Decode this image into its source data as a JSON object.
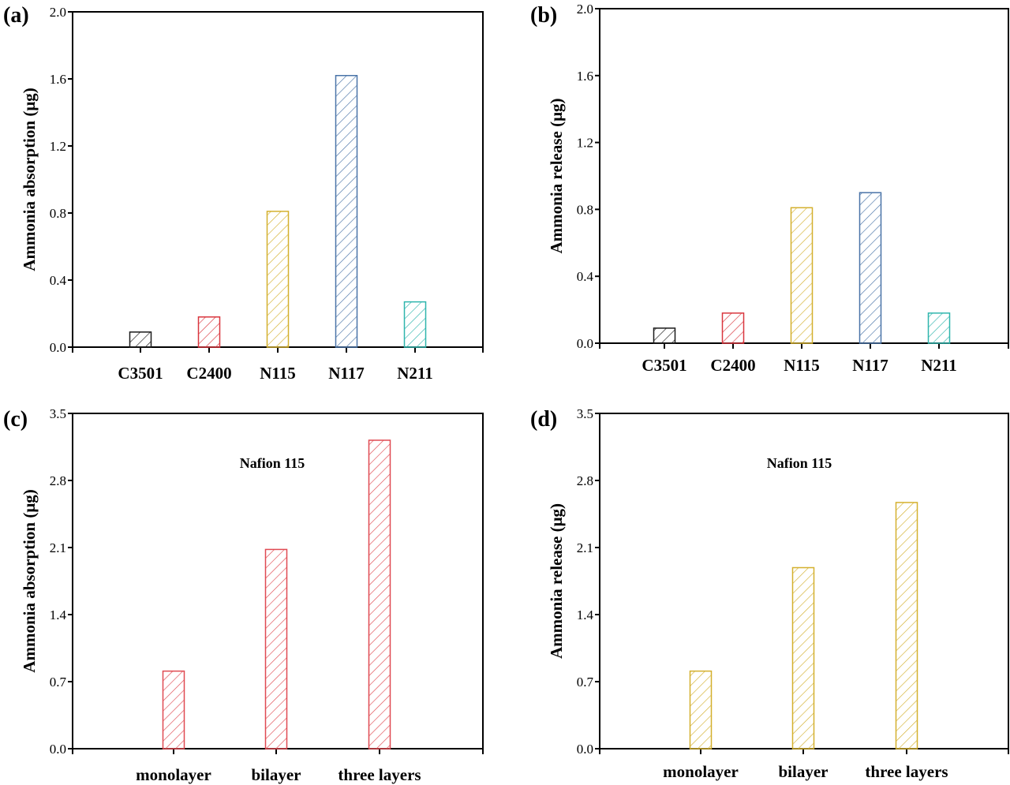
{
  "chart_data": [
    {
      "type": "bar",
      "panel_label": "(a)",
      "annotation": "",
      "categories": [
        "C3501",
        "C2400",
        "N115",
        "N117",
        "N211"
      ],
      "values": [
        0.09,
        0.18,
        0.81,
        1.62,
        0.27
      ],
      "colors": [
        "#1a1a1a",
        "#d9363e",
        "#d4b02e",
        "#4a74a8",
        "#2fb5ad"
      ],
      "ylabel": "Ammonia absorption (μg)",
      "xlabel": "",
      "ylim": [
        0,
        2.0
      ],
      "yticks": [
        "0.0",
        "0.4",
        "0.8",
        "1.2",
        "1.6",
        "2.0"
      ],
      "fill": "hatched",
      "grid": false
    },
    {
      "type": "bar",
      "panel_label": "(b)",
      "annotation": "",
      "categories": [
        "C3501",
        "C2400",
        "N115",
        "N117",
        "N211"
      ],
      "values": [
        0.09,
        0.18,
        0.81,
        0.9,
        0.18
      ],
      "colors": [
        "#1a1a1a",
        "#d9363e",
        "#d4b02e",
        "#4a74a8",
        "#2fb5ad"
      ],
      "ylabel": "Ammonia release (μg)",
      "xlabel": "",
      "ylim": [
        0,
        2.0
      ],
      "yticks": [
        "0.0",
        "0.4",
        "0.8",
        "1.2",
        "1.6",
        "2.0"
      ],
      "fill": "hatched",
      "grid": false
    },
    {
      "type": "bar",
      "panel_label": "(c)",
      "annotation": "Nafion 115",
      "categories": [
        "monolayer",
        "bilayer",
        "three layers"
      ],
      "values": [
        0.81,
        2.08,
        3.22
      ],
      "colors": [
        "#e04a52",
        "#e04a52",
        "#e04a52"
      ],
      "ylabel": "Ammonia absorption (μg)",
      "xlabel": "",
      "ylim": [
        0,
        3.5
      ],
      "yticks": [
        "0.0",
        "0.7",
        "1.4",
        "2.1",
        "2.8",
        "3.5"
      ],
      "fill": "hatched",
      "grid": false
    },
    {
      "type": "bar",
      "panel_label": "(d)",
      "annotation": "Nafion 115",
      "categories": [
        "monolayer",
        "bilayer",
        "three layers"
      ],
      "values": [
        0.81,
        1.89,
        2.57
      ],
      "colors": [
        "#d4b02e",
        "#d4b02e",
        "#d4b02e"
      ],
      "ylabel": "Ammonia release (μg)",
      "xlabel": "",
      "ylim": [
        0,
        3.5
      ],
      "yticks": [
        "0.0",
        "0.7",
        "1.4",
        "2.1",
        "2.8",
        "3.5"
      ],
      "fill": "hatched",
      "grid": false
    }
  ]
}
